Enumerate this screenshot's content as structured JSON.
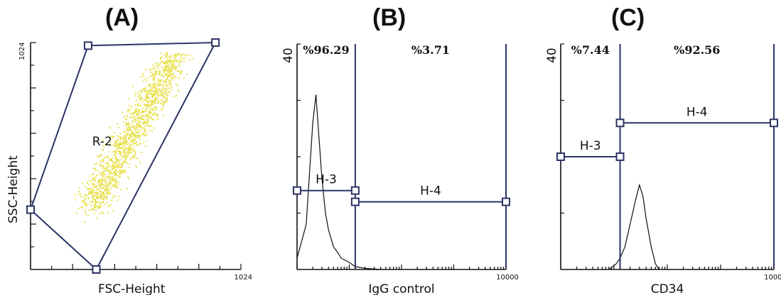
{
  "panels": {
    "a": {
      "title": "(A)"
    },
    "b": {
      "title": "(B)"
    },
    "c": {
      "title": "(C)"
    }
  },
  "chart_data": [
    {
      "type": "scatter",
      "panel": "(A)",
      "xlabel": "FSC-Height",
      "ylabel": "SSC-Height",
      "x_max_label": "1024",
      "y_max_label": "1024",
      "xlim": [
        0,
        1024
      ],
      "ylim": [
        0,
        1024
      ],
      "gate": {
        "name": "R-2",
        "vertices": [
          [
            0,
            270
          ],
          [
            320,
            0
          ],
          [
            900,
            1024
          ],
          [
            280,
            1010
          ]
        ]
      },
      "point_color": "#e8e04a"
    },
    {
      "type": "line",
      "panel": "(B)",
      "xlabel": "IgG control",
      "y_max_label": "40",
      "x_max_label": "10000",
      "ylim": [
        0,
        40
      ],
      "xlim": [
        1,
        10000
      ],
      "x_scale": "log",
      "gates": [
        {
          "name": "H-3",
          "range": [
            1,
            13
          ],
          "level": 14
        },
        {
          "name": "H-4",
          "range": [
            13,
            10000
          ],
          "level": 12
        }
      ],
      "percentages": [
        "%96.29",
        "%3.71"
      ],
      "histogram_x": [
        1,
        1.5,
        2,
        2.3,
        2.6,
        3,
        3.5,
        4,
        5,
        6,
        7,
        9,
        11,
        13,
        20,
        40
      ],
      "histogram_y": [
        2,
        8,
        26,
        31,
        24,
        16,
        10,
        7,
        4,
        3,
        2,
        1.5,
        1,
        0.5,
        0.2,
        0
      ]
    },
    {
      "type": "line",
      "panel": "(C)",
      "xlabel": "CD34",
      "y_max_label": "40",
      "x_max_label": "10000",
      "ylim": [
        0,
        40
      ],
      "xlim": [
        1,
        10000
      ],
      "x_scale": "log",
      "gates": [
        {
          "name": "H-3",
          "range": [
            1,
            13
          ],
          "level": 20
        },
        {
          "name": "H-4",
          "range": [
            13,
            10000
          ],
          "level": 26
        }
      ],
      "percentages": [
        "%7.44",
        "%92.56"
      ],
      "histogram_x": [
        8,
        11,
        13,
        16,
        20,
        25,
        30,
        35,
        40,
        50,
        60,
        70
      ],
      "histogram_y": [
        0,
        1,
        2,
        4,
        8,
        12,
        15,
        13,
        9,
        4,
        1,
        0
      ]
    }
  ]
}
